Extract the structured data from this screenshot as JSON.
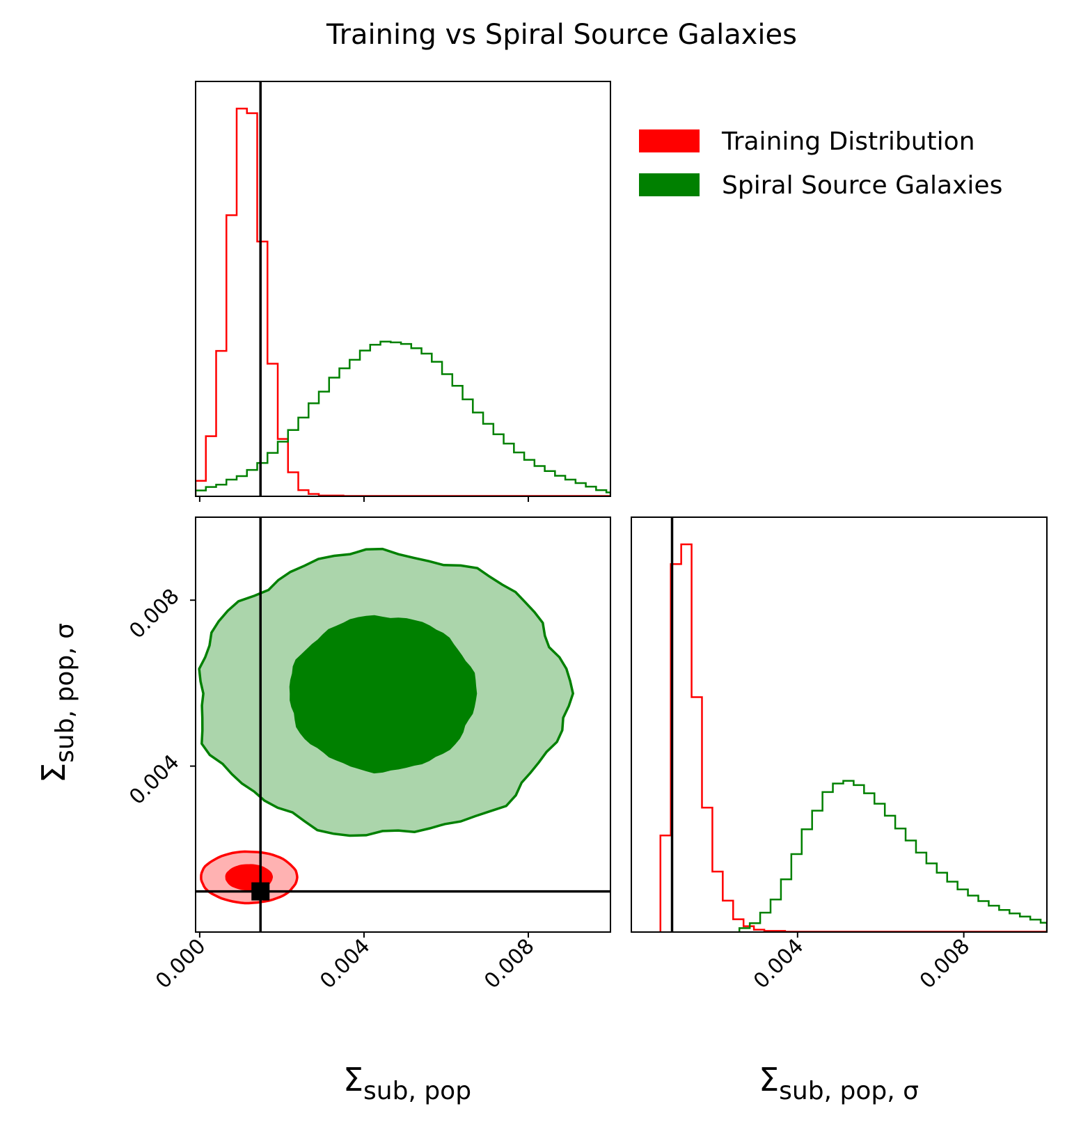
{
  "chart_data": {
    "type": "corner",
    "title": "Training vs Spiral Source Galaxies",
    "parameters": [
      {
        "symbol": "Σ",
        "subscript": "sub, pop"
      },
      {
        "symbol": "Σ",
        "subscript": "sub, pop, σ"
      }
    ],
    "axis_ranges": {
      "sub_pop": [
        -0.0001,
        0.01
      ],
      "sub_pop_sigma": [
        0.0,
        0.01
      ]
    },
    "ticks": {
      "sub_pop": [
        {
          "value": 0.0,
          "label": "0.000"
        },
        {
          "value": 0.004,
          "label": "0.004"
        },
        {
          "value": 0.008,
          "label": "0.008"
        }
      ],
      "sub_pop_sigma_y": [
        {
          "value": 0.004,
          "label": "0.004"
        },
        {
          "value": 0.008,
          "label": "0.008"
        }
      ],
      "sub_pop_sigma_x": [
        {
          "value": 0.004,
          "label": "0.004"
        },
        {
          "value": 0.008,
          "label": "0.008"
        }
      ]
    },
    "truth": {
      "sub_pop": 0.00148,
      "sub_pop_sigma": 0.00098
    },
    "legend": {
      "placement": "top-right",
      "entries": [
        {
          "label": "Training Distribution",
          "color": "#ff0000"
        },
        {
          "label": "Spiral Source Galaxies",
          "color": "#008000"
        }
      ]
    },
    "series": [
      {
        "name": "Training Distribution",
        "color": "#ff0000",
        "hist_sub_pop": {
          "bin_edges": [
            -0.0001,
            0.00015,
            0.0004,
            0.00065,
            0.0009,
            0.00115,
            0.0014,
            0.00165,
            0.0019,
            0.00215,
            0.0024,
            0.00265,
            0.0029,
            0.0035,
            0.01
          ],
          "counts": [
            0.04,
            0.155,
            0.375,
            0.725,
            1.0,
            0.988,
            0.657,
            0.342,
            0.148,
            0.062,
            0.016,
            0.006,
            0.002,
            0.001
          ]
        },
        "hist_sub_pop_sigma": {
          "bin_edges": [
            0.0007,
            0.00095,
            0.0012,
            0.00145,
            0.0017,
            0.00195,
            0.0022,
            0.00245,
            0.0027,
            0.00295,
            0.0032,
            0.0037,
            0.01
          ],
          "counts": [
            0.249,
            0.949,
            1.0,
            0.606,
            0.321,
            0.156,
            0.081,
            0.033,
            0.015,
            0.006,
            0.003,
            0.001
          ]
        },
        "contour_center": [
          0.0012,
          0.00132
        ],
        "contour_levels": [
          {
            "rx": 0.00055,
            "ry": 0.00029,
            "alpha": 1.0
          },
          {
            "rx": 0.00117,
            "ry": 0.00062,
            "alpha": 0.3
          }
        ]
      },
      {
        "name": "Spiral Source Galaxies",
        "color": "#008000",
        "hist_sub_pop": {
          "bin_edges": [
            -0.0001,
            0.00015,
            0.0004,
            0.00065,
            0.0009,
            0.00115,
            0.0014,
            0.00165,
            0.0019,
            0.00215,
            0.0024,
            0.00265,
            0.0029,
            0.00315,
            0.0034,
            0.00365,
            0.0039,
            0.00415,
            0.0044,
            0.00465,
            0.0049,
            0.00515,
            0.0054,
            0.00565,
            0.0059,
            0.00615,
            0.0064,
            0.00665,
            0.0069,
            0.00715,
            0.0074,
            0.00765,
            0.0079,
            0.00815,
            0.0084,
            0.00865,
            0.0089,
            0.00915,
            0.0094,
            0.00965,
            0.0099,
            0.01
          ],
          "counts": [
            0.015,
            0.024,
            0.03,
            0.043,
            0.052,
            0.068,
            0.086,
            0.112,
            0.141,
            0.171,
            0.203,
            0.24,
            0.27,
            0.306,
            0.33,
            0.352,
            0.376,
            0.391,
            0.399,
            0.397,
            0.393,
            0.382,
            0.368,
            0.347,
            0.315,
            0.285,
            0.25,
            0.216,
            0.187,
            0.16,
            0.136,
            0.113,
            0.094,
            0.078,
            0.065,
            0.053,
            0.043,
            0.034,
            0.025,
            0.016,
            0.01
          ]
        },
        "hist_sub_pop_sigma": {
          "bin_edges": [
            0.0026,
            0.00285,
            0.0031,
            0.00335,
            0.0036,
            0.00385,
            0.0041,
            0.00435,
            0.0046,
            0.00485,
            0.0051,
            0.00535,
            0.0056,
            0.00585,
            0.0061,
            0.00635,
            0.0066,
            0.00685,
            0.0071,
            0.00735,
            0.0076,
            0.00785,
            0.0081,
            0.00835,
            0.0086,
            0.00885,
            0.0091,
            0.00935,
            0.0096,
            0.00985,
            0.01
          ],
          "counts": [
            0.01,
            0.023,
            0.05,
            0.084,
            0.136,
            0.201,
            0.265,
            0.313,
            0.361,
            0.383,
            0.39,
            0.379,
            0.358,
            0.331,
            0.3,
            0.267,
            0.236,
            0.205,
            0.177,
            0.153,
            0.13,
            0.11,
            0.094,
            0.08,
            0.068,
            0.057,
            0.048,
            0.04,
            0.032,
            0.024
          ]
        },
        "contour_center": [
          0.00445,
          0.00575
        ],
        "contour_levels": [
          {
            "rx": 0.00225,
            "ry": 0.00185,
            "alpha": 1.0
          },
          {
            "rx": 0.0045,
            "ry": 0.0034,
            "alpha": 0.33
          }
        ]
      }
    ]
  }
}
